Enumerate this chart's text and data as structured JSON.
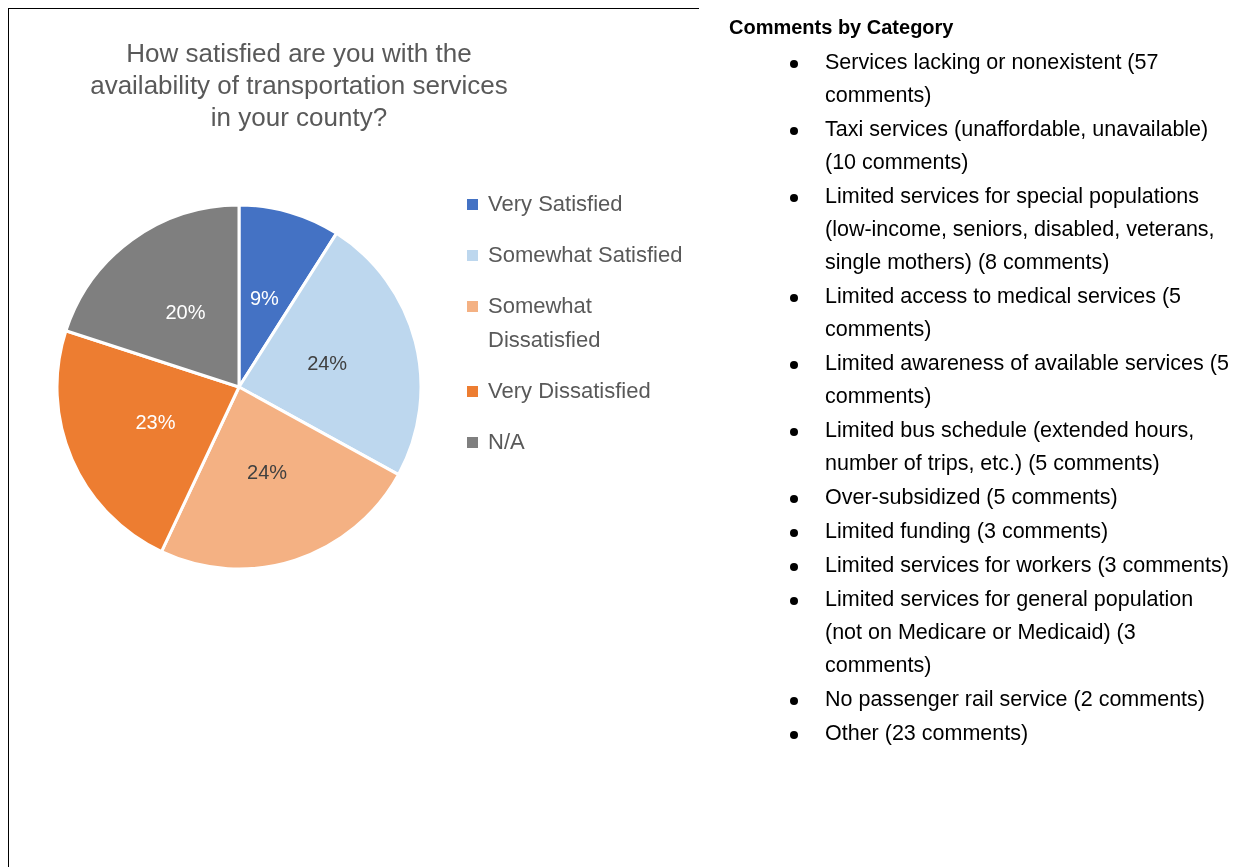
{
  "chart_data": [
    {
      "type": "pie",
      "title": "How satisfied are you with the availability of transportation services in your county?",
      "categories": [
        "Very Satisfied",
        "Somewhat Satisfied",
        "Somewhat Dissatisfied",
        "Very Dissatisfied",
        "N/A"
      ],
      "values": [
        9,
        24,
        24,
        23,
        20
      ],
      "value_labels": [
        "9%",
        "24%",
        "24%",
        "23%",
        "20%"
      ],
      "colors": [
        "#4472c4",
        "#bdd7ee",
        "#f4b183",
        "#ed7d31",
        "#7f7f7f"
      ],
      "legend": "right"
    },
    {
      "type": "other",
      "title": "Comments by Category",
      "annotations": [
        "Services lacking or nonexistent (57 comments)",
        "Taxi services (unaffordable, unavailable) (10 comments)",
        "Limited services for special populations (low-income, seniors, disabled, veterans, single mothers) (8 comments)",
        "Limited access to medical services (5 comments)",
        "Limited awareness of available services (5 comments)",
        "Limited bus schedule (extended hours, number of trips, etc.) (5 comments)",
        "Over-subsidized (5 comments)",
        "Limited funding (3 comments)",
        "Limited services for workers (3 comments)",
        "Limited services for general population (not on Medicare or Medicaid) (3 comments)",
        "No passenger rail service (2 comments)",
        "Other (23 comments)"
      ]
    }
  ]
}
